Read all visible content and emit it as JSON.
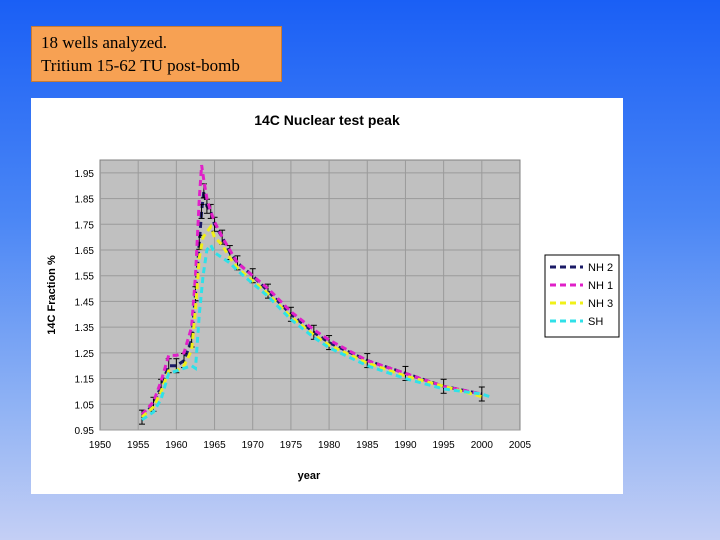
{
  "note": {
    "line1": "18 wells analyzed.",
    "line2": "Tritium 15-62 TU post-bomb"
  },
  "chart_data": {
    "type": "line",
    "title": "14C Nuclear test peak",
    "xlabel": "year",
    "ylabel": "14C Fraction %",
    "xlim": [
      1950,
      2005
    ],
    "ylim": [
      0.95,
      2.0
    ],
    "xticks": [
      1950,
      1955,
      1960,
      1965,
      1970,
      1975,
      1980,
      1985,
      1990,
      1995,
      2000,
      2005
    ],
    "yticks": [
      0.95,
      1.05,
      1.15,
      1.25,
      1.35,
      1.45,
      1.55,
      1.65,
      1.75,
      1.85,
      1.95
    ],
    "grid": true,
    "legend_position": "right",
    "plot_background": "#c0c0c0",
    "series": [
      {
        "name": "NH 2",
        "color": "#1a1a66",
        "x": [
          1955.5,
          1957,
          1958,
          1959,
          1960,
          1961,
          1962,
          1962.5,
          1963,
          1963.3,
          1963.6,
          1964,
          1964.5,
          1965,
          1966,
          1967,
          1968,
          1970,
          1972,
          1975,
          1978,
          1980,
          1985,
          1990,
          1995,
          2000
        ],
        "y": [
          1.0,
          1.05,
          1.12,
          1.2,
          1.2,
          1.22,
          1.3,
          1.48,
          1.68,
          1.8,
          1.88,
          1.82,
          1.8,
          1.75,
          1.7,
          1.64,
          1.6,
          1.55,
          1.49,
          1.4,
          1.33,
          1.29,
          1.22,
          1.17,
          1.12,
          1.09
        ]
      },
      {
        "name": "NH 1",
        "color": "#e020c8",
        "x": [
          1955.5,
          1957,
          1958,
          1959,
          1960,
          1961,
          1962,
          1962.5,
          1963,
          1963.3,
          1963.6,
          1964,
          1964.5,
          1965,
          1966,
          1967,
          1968,
          1970,
          1972,
          1975,
          1978,
          1980,
          1985,
          1990,
          1995,
          2000
        ],
        "y": [
          1.01,
          1.06,
          1.14,
          1.24,
          1.24,
          1.25,
          1.35,
          1.55,
          1.85,
          1.98,
          1.92,
          1.85,
          1.8,
          1.76,
          1.7,
          1.65,
          1.6,
          1.55,
          1.5,
          1.41,
          1.34,
          1.3,
          1.22,
          1.17,
          1.12,
          1.09
        ]
      },
      {
        "name": "NH 3",
        "color": "#f0f018",
        "x": [
          1955.5,
          1957,
          1958,
          1959,
          1960,
          1961,
          1962,
          1962.5,
          1963,
          1963.5,
          1964,
          1964.5,
          1965,
          1966,
          1967,
          1968,
          1970,
          1972,
          1975,
          1978,
          1980,
          1985,
          1990,
          1995,
          2000
        ],
        "y": [
          1.0,
          1.04,
          1.1,
          1.18,
          1.18,
          1.2,
          1.26,
          1.42,
          1.62,
          1.7,
          1.72,
          1.74,
          1.7,
          1.67,
          1.62,
          1.58,
          1.53,
          1.48,
          1.39,
          1.32,
          1.28,
          1.21,
          1.16,
          1.12,
          1.08
        ]
      },
      {
        "name": "SH",
        "color": "#30e0e8",
        "x": [
          1955.5,
          1957,
          1958,
          1959,
          1960,
          1961,
          1962,
          1962.5,
          1963,
          1963.5,
          1964,
          1964.5,
          1965,
          1966,
          1967,
          1968,
          1970,
          1972,
          1975,
          1978,
          1980,
          1985,
          1990,
          1995,
          2000,
          2001
        ],
        "y": [
          0.99,
          1.02,
          1.07,
          1.17,
          1.18,
          1.19,
          1.2,
          1.19,
          1.4,
          1.55,
          1.65,
          1.67,
          1.64,
          1.62,
          1.6,
          1.57,
          1.52,
          1.47,
          1.38,
          1.31,
          1.27,
          1.2,
          1.15,
          1.11,
          1.09,
          1.08
        ]
      }
    ]
  }
}
